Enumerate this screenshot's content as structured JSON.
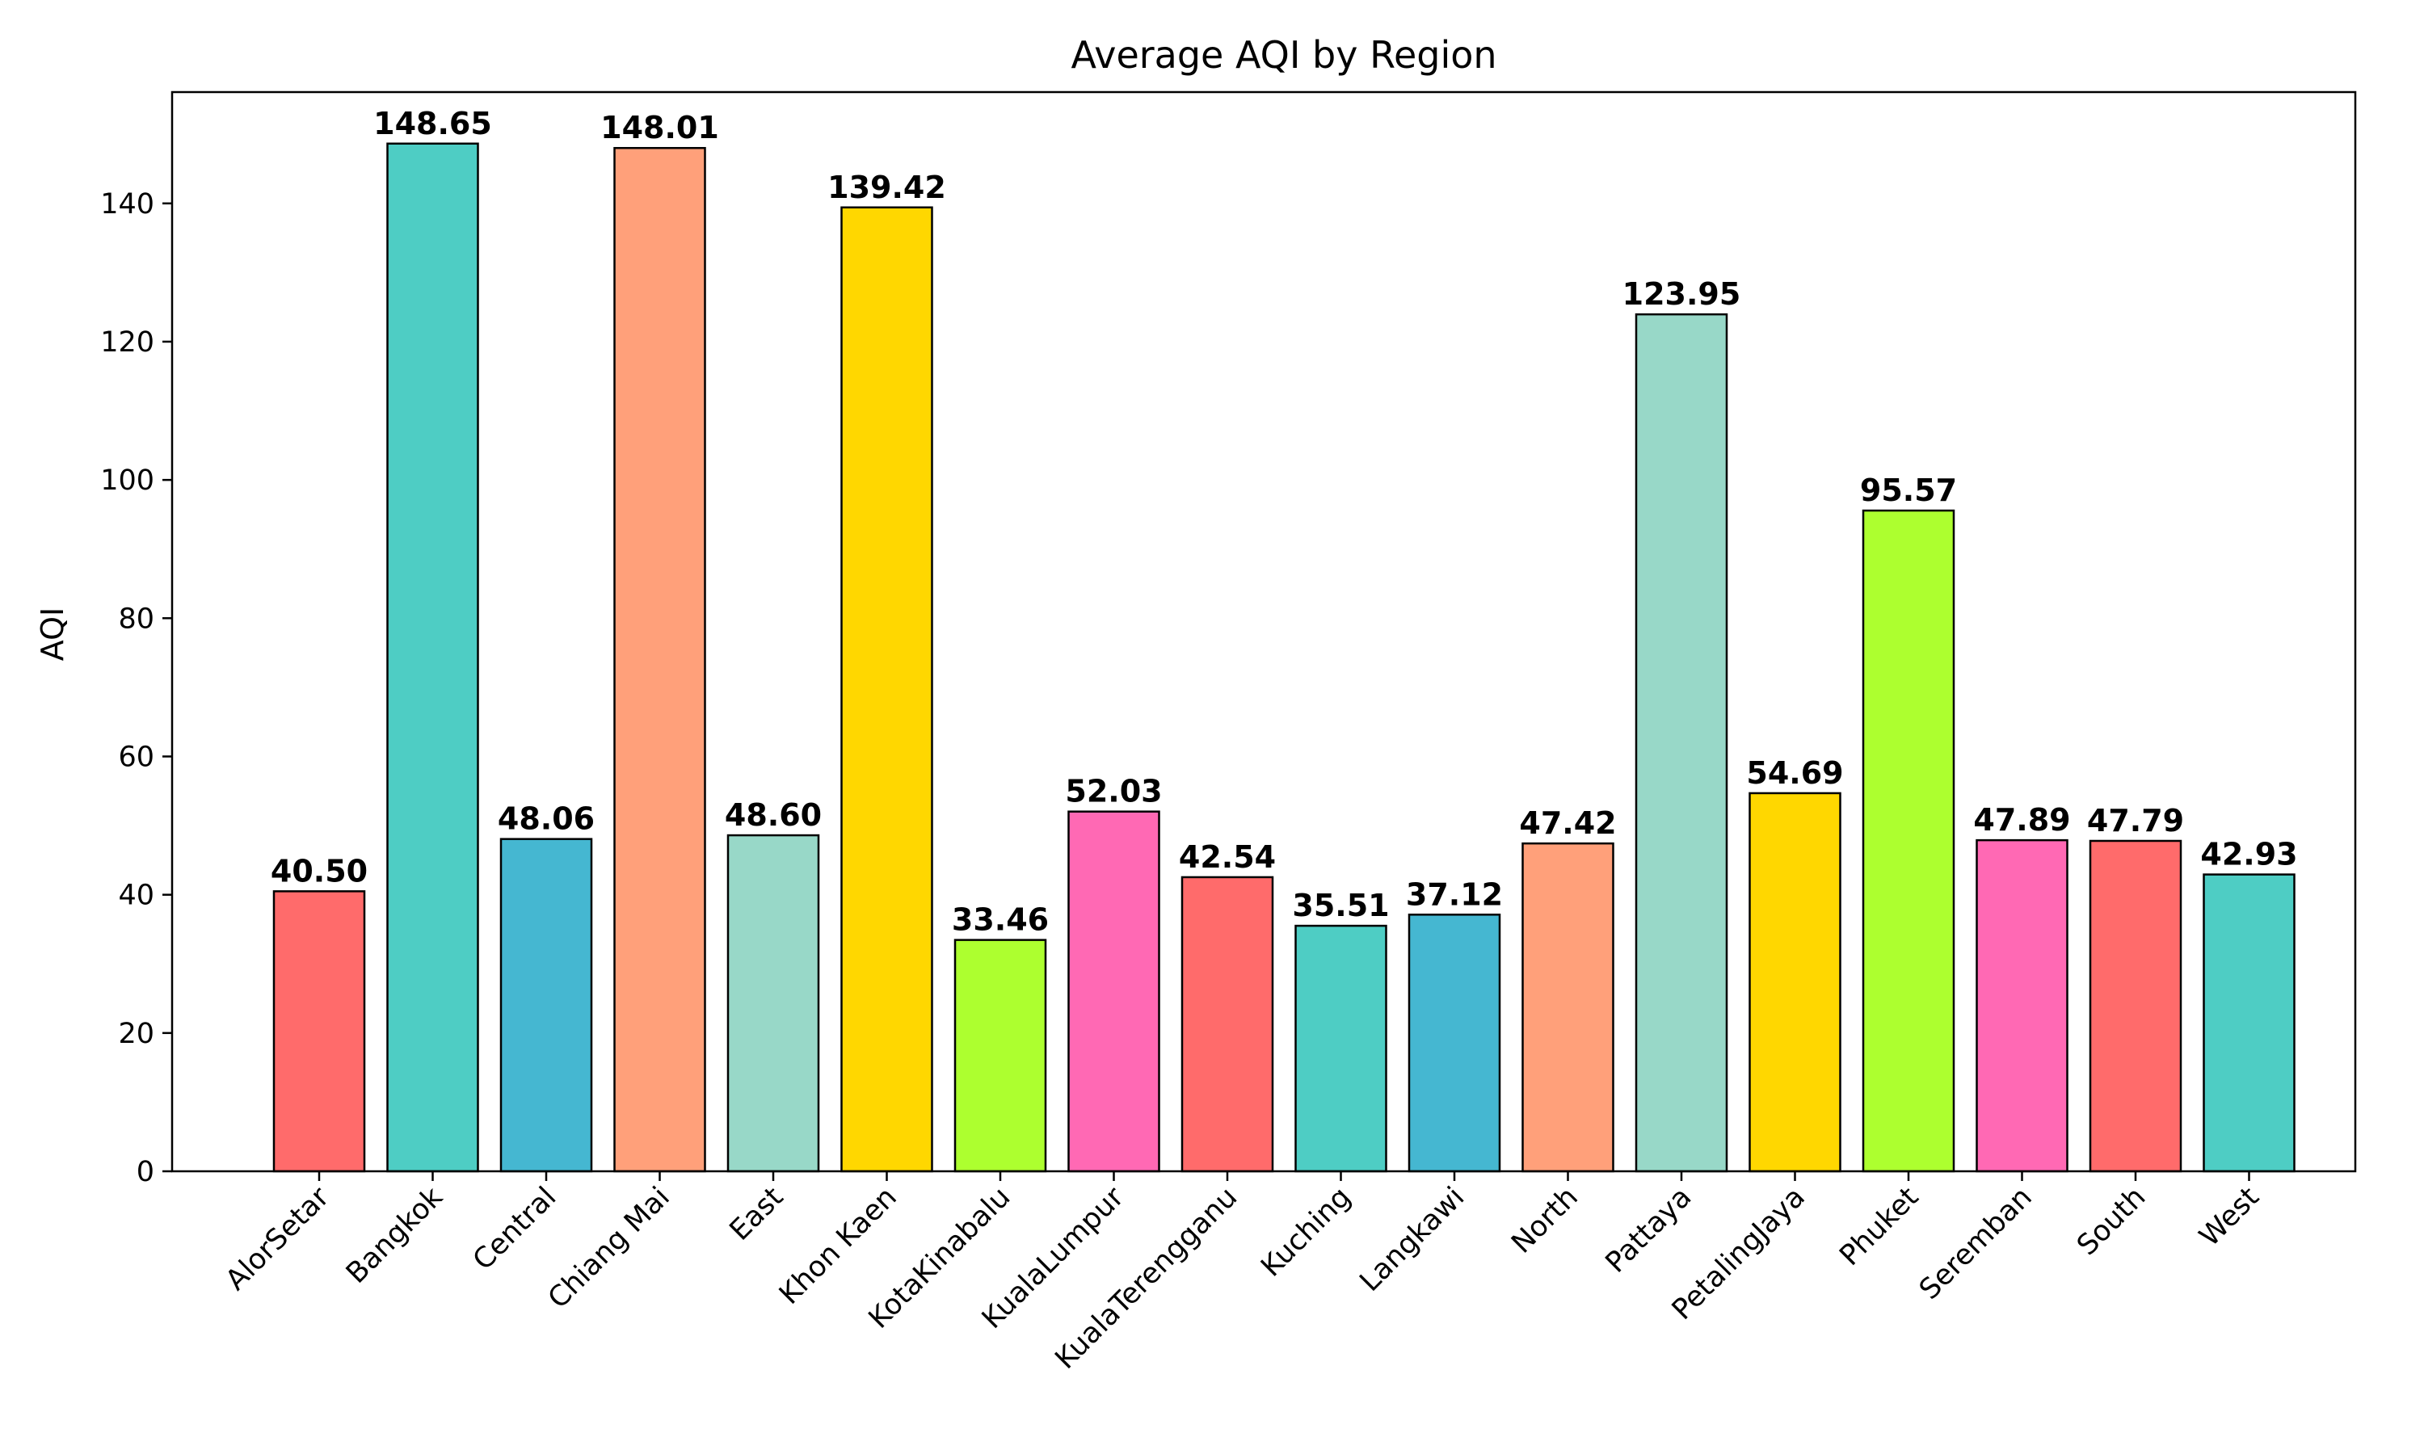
{
  "chart_data": {
    "type": "bar",
    "title": "Average AQI by Region",
    "xlabel": "",
    "ylabel": "AQI",
    "categories": [
      "AlorSetar",
      "Bangkok",
      "Central",
      "Chiang Mai",
      "East",
      "Khon Kaen",
      "KotaKinabalu",
      "KualaLumpur",
      "KualaTerengganu",
      "Kuching",
      "Langkawi",
      "North",
      "Pattaya",
      "PetalingJaya",
      "Phuket",
      "Seremban",
      "South",
      "West"
    ],
    "values": [
      40.5,
      148.65,
      48.06,
      148.01,
      48.6,
      139.42,
      33.46,
      52.03,
      42.54,
      35.51,
      37.12,
      47.42,
      123.95,
      54.69,
      95.57,
      47.89,
      47.79,
      42.93
    ],
    "value_labels": [
      "40.50",
      "148.65",
      "48.06",
      "148.01",
      "48.60",
      "139.42",
      "33.46",
      "52.03",
      "42.54",
      "35.51",
      "37.12",
      "47.42",
      "123.95",
      "54.69",
      "95.57",
      "47.89",
      "47.79",
      "42.93"
    ],
    "colors": [
      "#FF6B6B",
      "#4ECDC4",
      "#45B7D1",
      "#FFA07A",
      "#98D8C8",
      "#FFD700",
      "#ADFF2F",
      "#FF69B4",
      "#FF6B6B",
      "#4ECDC4",
      "#45B7D1",
      "#FFA07A",
      "#98D8C8",
      "#FFD700",
      "#ADFF2F",
      "#FF69B4",
      "#FF6B6B",
      "#4ECDC4"
    ],
    "yticks": [
      0,
      20,
      40,
      60,
      80,
      100,
      120,
      140
    ],
    "ylim": [
      0,
      156.1
    ],
    "grid": false,
    "legend": "none"
  }
}
